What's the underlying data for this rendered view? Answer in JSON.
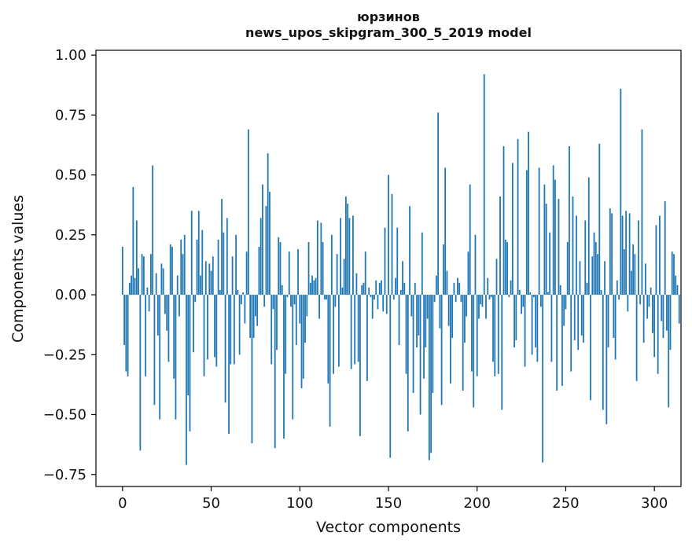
{
  "chart_data": {
    "type": "bar",
    "title": "юрзинов",
    "subtitle": "news_upos_skipgram_300_5_2019 model",
    "xlabel": "Vector components",
    "ylabel": "Components values",
    "xlim": [
      -15,
      315
    ],
    "ylim": [
      -0.8,
      1.02
    ],
    "xticks": [
      0,
      50,
      100,
      150,
      200,
      250,
      300
    ],
    "yticks": [
      1.0,
      0.75,
      0.5,
      0.25,
      0.0,
      -0.25,
      -0.5,
      -0.75
    ],
    "xtick_labels": [
      "0",
      "50",
      "100",
      "150",
      "200",
      "250",
      "300"
    ],
    "ytick_labels": [
      "1.00",
      "0.75",
      "0.50",
      "0.25",
      "0.00",
      "−0.25",
      "−0.50",
      "−0.75"
    ],
    "grid": false,
    "legend": "none",
    "bar_color": "#1f77b4",
    "x_start": 0,
    "values": [
      0.2,
      -0.21,
      -0.32,
      -0.34,
      0.05,
      0.08,
      0.45,
      0.07,
      0.31,
      0.11,
      -0.65,
      0.17,
      0.16,
      -0.34,
      0.03,
      -0.07,
      0.17,
      0.54,
      -0.46,
      0.09,
      -0.17,
      -0.52,
      0.13,
      0.11,
      -0.08,
      -0.15,
      -0.28,
      0.21,
      0.2,
      -0.35,
      -0.52,
      0.08,
      -0.09,
      0.23,
      0.17,
      0.25,
      -0.71,
      -0.42,
      -0.57,
      0.35,
      -0.24,
      -0.03,
      0.23,
      0.35,
      0.08,
      0.27,
      -0.34,
      0.14,
      -0.27,
      0.13,
      0.1,
      0.16,
      -0.26,
      -0.3,
      0.23,
      0.02,
      0.4,
      0.26,
      -0.45,
      0.32,
      -0.58,
      -0.29,
      0.16,
      -0.29,
      0.25,
      0.02,
      -0.25,
      -0.04,
      0.01,
      -0.12,
      0.18,
      0.69,
      -0.18,
      -0.62,
      -0.18,
      -0.09,
      -0.13,
      0.2,
      0.32,
      0.46,
      -0.05,
      0.37,
      0.59,
      0.43,
      -0.29,
      -0.06,
      -0.64,
      -0.23,
      0.24,
      0.22,
      0.04,
      -0.6,
      -0.33,
      -0.01,
      0.18,
      -0.05,
      -0.52,
      -0.04,
      -0.21,
      0.19,
      -0.12,
      -0.39,
      -0.35,
      -0.2,
      -0.09,
      0.22,
      0.05,
      0.08,
      0.06,
      0.07,
      0.31,
      -0.1,
      0.3,
      0.22,
      -0.02,
      -0.02,
      -0.37,
      -0.55,
      0.25,
      -0.33,
      -0.05,
      0.17,
      -0.3,
      0.32,
      0.03,
      0.15,
      0.41,
      0.38,
      0.32,
      -0.31,
      0.33,
      -0.29,
      0.09,
      -0.28,
      -0.59,
      0.04,
      0.05,
      0.18,
      -0.36,
      0.03,
      -0.01,
      -0.1,
      -0.02,
      0.06,
      -0.06,
      0.05,
      0.06,
      -0.07,
      0.28,
      -0.08,
      0.5,
      -0.68,
      0.42,
      -0.02,
      0.07,
      0.28,
      -0.21,
      0.02,
      0.14,
      0.05,
      -0.33,
      -0.57,
      0.37,
      -0.09,
      -0.41,
      0.05,
      -0.22,
      -0.17,
      -0.5,
      0.26,
      -0.35,
      -0.22,
      -0.1,
      -0.69,
      -0.66,
      -0.41,
      -0.03,
      0.08,
      0.76,
      -0.14,
      -0.46,
      0.21,
      0.53,
      0.1,
      -0.13,
      -0.37,
      -0.18,
      0.05,
      -0.03,
      0.07,
      0.05,
      -0.03,
      -0.4,
      -0.2,
      -0.09,
      0.18,
      0.46,
      -0.32,
      -0.47,
      0.25,
      -0.34,
      -0.1,
      -0.04,
      -0.05,
      0.92,
      -0.1,
      0.07,
      -0.02,
      -0.01,
      -0.28,
      -0.34,
      0.15,
      -0.33,
      0.41,
      -0.48,
      0.62,
      0.23,
      0.22,
      -0.01,
      0.06,
      0.55,
      -0.22,
      -0.19,
      0.65,
      0.02,
      -0.08,
      -0.05,
      -0.3,
      0.52,
      0.68,
      0.01,
      -0.25,
      -0.01,
      -0.22,
      -0.28,
      0.53,
      -0.05,
      -0.7,
      0.46,
      0.38,
      0.01,
      0.26,
      -0.28,
      0.54,
      0.48,
      -0.4,
      0.4,
      0.04,
      -0.38,
      -0.13,
      -0.06,
      0.22,
      0.62,
      -0.32,
      0.41,
      -0.19,
      0.33,
      -0.23,
      0.14,
      -0.17,
      -0.2,
      0.31,
      0.05,
      0.49,
      -0.44,
      0.16,
      0.26,
      0.22,
      0.17,
      0.63,
      0.02,
      -0.48,
      0.14,
      -0.54,
      -0.22,
      0.36,
      0.34,
      -0.18,
      -0.27,
      0.06,
      -0.02,
      0.86,
      0.33,
      0.19,
      0.35,
      -0.07,
      0.34,
      0.1,
      0.21,
      0.17,
      -0.36,
      0.31,
      -0.04,
      0.69,
      -0.2,
      0.13,
      -0.1,
      -0.05,
      0.03,
      -0.16,
      -0.26,
      0.29,
      -0.33,
      0.33,
      -0.11,
      -0.18,
      0.39,
      -0.15,
      -0.47,
      -0.23,
      0.18,
      0.17,
      0.08,
      0.04,
      -0.12
    ]
  }
}
